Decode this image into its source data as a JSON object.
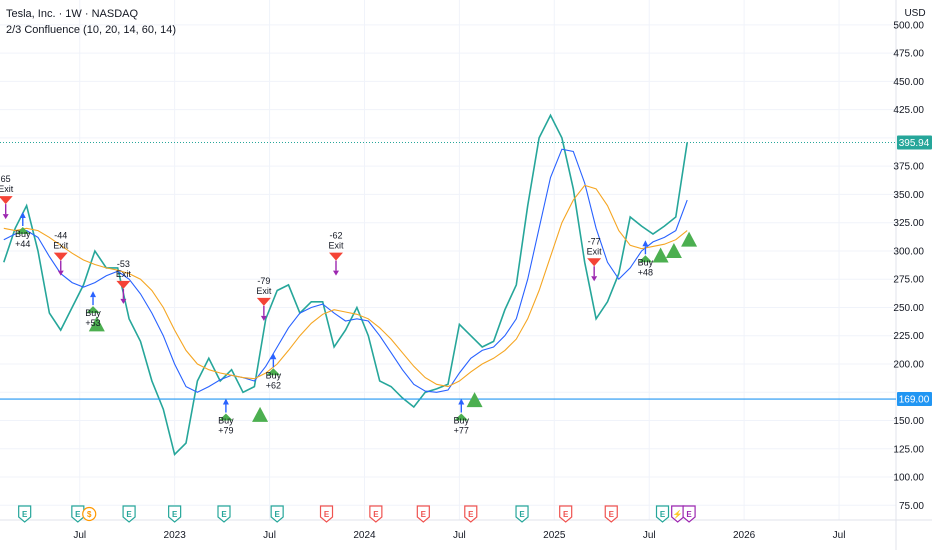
{
  "header": {
    "title": "Tesla, Inc. · 1W · NASDAQ",
    "indicator": "2/3 Confluence (10, 20, 14, 60, 14)",
    "currency": "USD"
  },
  "colors": {
    "up": "#26a69a",
    "down": "#ef5350",
    "grid": "#f0f3fa",
    "fast_ma": "#2962ff",
    "slow_ma": "#f5a623",
    "support": "#2196f3",
    "last": "#26a69a",
    "buy": "#4caf50",
    "exit": "#f44336",
    "marker": "#9c27b0"
  },
  "chart_data": {
    "type": "line",
    "title": "",
    "xlabel": "",
    "ylabel": "",
    "y_ticks": [
      75,
      100,
      125,
      150,
      175,
      200,
      225,
      250,
      275,
      300,
      325,
      350,
      375,
      400,
      425,
      450,
      475,
      500
    ],
    "y_tick_labels": [
      "75.00",
      "100.00",
      "125.00",
      "150.00",
      "175.00",
      "200.00",
      "225.00",
      "250.00",
      "275.00",
      "300.00",
      "325.00",
      "350.00",
      "375.00",
      "400.00",
      "425.00",
      "450.00",
      "475.00",
      "500.00"
    ],
    "ylim": [
      62,
      522
    ],
    "x_ticks": [
      {
        "label": "Jul",
        "t": 2022.5
      },
      {
        "label": "2023",
        "t": 2023.0
      },
      {
        "label": "Jul",
        "t": 2023.5
      },
      {
        "label": "2024",
        "t": 2024.0
      },
      {
        "label": "Jul",
        "t": 2024.5
      },
      {
        "label": "2025",
        "t": 2025.0
      },
      {
        "label": "Jul",
        "t": 2025.5
      },
      {
        "label": "2026",
        "t": 2026.0
      },
      {
        "label": "Jul",
        "t": 2026.5
      }
    ],
    "xlim": [
      2022.08,
      2026.8
    ],
    "series": [
      {
        "values": [
          [
            2022.1,
            290
          ],
          [
            2022.16,
            320
          ],
          [
            2022.22,
            340
          ],
          [
            2022.28,
            300
          ],
          [
            2022.34,
            245
          ],
          [
            2022.4,
            230
          ],
          [
            2022.46,
            250
          ],
          [
            2022.52,
            270
          ],
          [
            2022.58,
            300
          ],
          [
            2022.64,
            285
          ],
          [
            2022.7,
            285
          ],
          [
            2022.76,
            240
          ],
          [
            2022.82,
            220
          ],
          [
            2022.88,
            185
          ],
          [
            2022.94,
            160
          ],
          [
            2023.0,
            120
          ],
          [
            2023.06,
            130
          ],
          [
            2023.12,
            185
          ],
          [
            2023.18,
            205
          ],
          [
            2023.24,
            185
          ],
          [
            2023.3,
            195
          ],
          [
            2023.36,
            175
          ],
          [
            2023.42,
            180
          ],
          [
            2023.48,
            240
          ],
          [
            2023.54,
            265
          ],
          [
            2023.6,
            270
          ],
          [
            2023.66,
            245
          ],
          [
            2023.72,
            255
          ],
          [
            2023.78,
            255
          ],
          [
            2023.84,
            215
          ],
          [
            2023.9,
            230
          ],
          [
            2023.96,
            250
          ],
          [
            2024.02,
            225
          ],
          [
            2024.08,
            185
          ],
          [
            2024.14,
            180
          ],
          [
            2024.2,
            170
          ],
          [
            2024.26,
            162
          ],
          [
            2024.32,
            175
          ],
          [
            2024.38,
            178
          ],
          [
            2024.44,
            182
          ],
          [
            2024.5,
            235
          ],
          [
            2024.56,
            225
          ],
          [
            2024.62,
            215
          ],
          [
            2024.68,
            220
          ],
          [
            2024.74,
            248
          ],
          [
            2024.8,
            270
          ],
          [
            2024.86,
            340
          ],
          [
            2024.92,
            400
          ],
          [
            2024.98,
            420
          ],
          [
            2025.04,
            400
          ],
          [
            2025.1,
            355
          ],
          [
            2025.16,
            290
          ],
          [
            2025.22,
            240
          ],
          [
            2025.28,
            255
          ],
          [
            2025.34,
            280
          ],
          [
            2025.4,
            330
          ],
          [
            2025.46,
            322
          ],
          [
            2025.52,
            315
          ],
          [
            2025.58,
            322
          ],
          [
            2025.64,
            330
          ],
          [
            2025.7,
            396
          ]
        ]
      },
      {
        "values": [
          [
            2022.1,
            310
          ],
          [
            2022.16,
            315
          ],
          [
            2022.22,
            318
          ],
          [
            2022.28,
            312
          ],
          [
            2022.34,
            295
          ],
          [
            2022.4,
            280
          ],
          [
            2022.46,
            272
          ],
          [
            2022.52,
            268
          ],
          [
            2022.58,
            272
          ],
          [
            2022.64,
            278
          ],
          [
            2022.7,
            282
          ],
          [
            2022.76,
            275
          ],
          [
            2022.82,
            262
          ],
          [
            2022.88,
            245
          ],
          [
            2022.94,
            225
          ],
          [
            2023.0,
            200
          ],
          [
            2023.06,
            180
          ],
          [
            2023.12,
            175
          ],
          [
            2023.18,
            180
          ],
          [
            2023.24,
            186
          ],
          [
            2023.3,
            190
          ],
          [
            2023.36,
            188
          ],
          [
            2023.42,
            185
          ],
          [
            2023.48,
            198
          ],
          [
            2023.54,
            215
          ],
          [
            2023.6,
            232
          ],
          [
            2023.66,
            245
          ],
          [
            2023.72,
            250
          ],
          [
            2023.78,
            253
          ],
          [
            2023.84,
            245
          ],
          [
            2023.9,
            238
          ],
          [
            2023.96,
            240
          ],
          [
            2024.02,
            238
          ],
          [
            2024.08,
            225
          ],
          [
            2024.14,
            210
          ],
          [
            2024.2,
            195
          ],
          [
            2024.26,
            182
          ],
          [
            2024.32,
            176
          ],
          [
            2024.38,
            175
          ],
          [
            2024.44,
            177
          ],
          [
            2024.5,
            192
          ],
          [
            2024.56,
            205
          ],
          [
            2024.62,
            212
          ],
          [
            2024.68,
            215
          ],
          [
            2024.74,
            225
          ],
          [
            2024.8,
            240
          ],
          [
            2024.86,
            275
          ],
          [
            2024.92,
            320
          ],
          [
            2024.98,
            365
          ],
          [
            2025.04,
            390
          ],
          [
            2025.1,
            388
          ],
          [
            2025.16,
            360
          ],
          [
            2025.22,
            320
          ],
          [
            2025.28,
            290
          ],
          [
            2025.34,
            275
          ],
          [
            2025.4,
            285
          ],
          [
            2025.46,
            300
          ],
          [
            2025.52,
            308
          ],
          [
            2025.58,
            312
          ],
          [
            2025.64,
            318
          ],
          [
            2025.7,
            345
          ]
        ]
      },
      {
        "values": [
          [
            2022.1,
            320
          ],
          [
            2022.16,
            318
          ],
          [
            2022.22,
            320
          ],
          [
            2022.28,
            318
          ],
          [
            2022.34,
            312
          ],
          [
            2022.4,
            305
          ],
          [
            2022.46,
            298
          ],
          [
            2022.52,
            292
          ],
          [
            2022.58,
            288
          ],
          [
            2022.64,
            285
          ],
          [
            2022.7,
            283
          ],
          [
            2022.76,
            280
          ],
          [
            2022.82,
            275
          ],
          [
            2022.88,
            265
          ],
          [
            2022.94,
            250
          ],
          [
            2023.0,
            230
          ],
          [
            2023.06,
            212
          ],
          [
            2023.12,
            200
          ],
          [
            2023.18,
            195
          ],
          [
            2023.24,
            192
          ],
          [
            2023.3,
            190
          ],
          [
            2023.36,
            188
          ],
          [
            2023.42,
            187
          ],
          [
            2023.48,
            192
          ],
          [
            2023.54,
            200
          ],
          [
            2023.6,
            212
          ],
          [
            2023.66,
            225
          ],
          [
            2023.72,
            236
          ],
          [
            2023.78,
            244
          ],
          [
            2023.84,
            248
          ],
          [
            2023.9,
            246
          ],
          [
            2023.96,
            244
          ],
          [
            2024.02,
            240
          ],
          [
            2024.08,
            232
          ],
          [
            2024.14,
            222
          ],
          [
            2024.2,
            210
          ],
          [
            2024.26,
            198
          ],
          [
            2024.32,
            188
          ],
          [
            2024.38,
            182
          ],
          [
            2024.44,
            180
          ],
          [
            2024.5,
            185
          ],
          [
            2024.56,
            193
          ],
          [
            2024.62,
            200
          ],
          [
            2024.68,
            205
          ],
          [
            2024.74,
            212
          ],
          [
            2024.8,
            222
          ],
          [
            2024.86,
            240
          ],
          [
            2024.92,
            265
          ],
          [
            2024.98,
            295
          ],
          [
            2025.04,
            325
          ],
          [
            2025.1,
            345
          ],
          [
            2025.16,
            358
          ],
          [
            2025.22,
            355
          ],
          [
            2025.28,
            340
          ],
          [
            2025.34,
            318
          ],
          [
            2025.4,
            305
          ],
          [
            2025.46,
            302
          ],
          [
            2025.52,
            304
          ],
          [
            2025.58,
            306
          ],
          [
            2025.64,
            310
          ],
          [
            2025.7,
            318
          ]
        ]
      }
    ],
    "last_price": 395.94,
    "last_price_label": "395.94",
    "support_level": 169,
    "support_label": "169.00",
    "signals": [
      {
        "t": 2022.11,
        "price": 345,
        "kind": "exit",
        "label": "Exit",
        "pnl": "65"
      },
      {
        "t": 2022.2,
        "price": 315,
        "kind": "buy",
        "label": "Buy",
        "pnl": "+44"
      },
      {
        "t": 2022.4,
        "price": 295,
        "kind": "exit",
        "label": "Exit",
        "pnl": "-44"
      },
      {
        "t": 2022.57,
        "price": 245,
        "kind": "buy",
        "label": "Buy",
        "pnl": "+53"
      },
      {
        "t": 2022.73,
        "price": 270,
        "kind": "exit",
        "label": "Exit",
        "pnl": "-53"
      },
      {
        "t": 2023.27,
        "price": 150,
        "kind": "buy",
        "label": "Buy",
        "pnl": "+79"
      },
      {
        "t": 2023.47,
        "price": 255,
        "kind": "exit",
        "label": "Exit",
        "pnl": "-79"
      },
      {
        "t": 2023.52,
        "price": 190,
        "kind": "buy",
        "label": "Buy",
        "pnl": "+62"
      },
      {
        "t": 2023.85,
        "price": 295,
        "kind": "exit",
        "label": "Exit",
        "pnl": "-62"
      },
      {
        "t": 2024.51,
        "price": 150,
        "kind": "buy",
        "label": "Buy",
        "pnl": "+77"
      },
      {
        "t": 2025.21,
        "price": 290,
        "kind": "exit",
        "label": "Exit",
        "pnl": "-77"
      },
      {
        "t": 2025.48,
        "price": 290,
        "kind": "buy",
        "label": "Buy",
        "pnl": "+48"
      }
    ],
    "triangles": [
      [
        2022.59,
        235
      ],
      [
        2023.45,
        155
      ],
      [
        2024.58,
        168
      ],
      [
        2025.56,
        296
      ],
      [
        2025.63,
        300
      ],
      [
        2025.71,
        310
      ]
    ],
    "events": [
      {
        "t": 2022.21,
        "icon": "E",
        "kind": "earnings"
      },
      {
        "t": 2022.49,
        "icon": "E",
        "kind": "earnings"
      },
      {
        "t": 2022.55,
        "icon": "$",
        "kind": "dividend"
      },
      {
        "t": 2022.76,
        "icon": "E",
        "kind": "earnings"
      },
      {
        "t": 2023.0,
        "icon": "E",
        "kind": "earnings"
      },
      {
        "t": 2023.26,
        "icon": "E",
        "kind": "earnings"
      },
      {
        "t": 2023.54,
        "icon": "E",
        "kind": "earnings"
      },
      {
        "t": 2023.8,
        "icon": "E",
        "kind": "earnings-miss"
      },
      {
        "t": 2024.06,
        "icon": "E",
        "kind": "earnings-miss"
      },
      {
        "t": 2024.31,
        "icon": "E",
        "kind": "earnings-miss"
      },
      {
        "t": 2024.56,
        "icon": "E",
        "kind": "earnings-miss"
      },
      {
        "t": 2024.83,
        "icon": "E",
        "kind": "earnings"
      },
      {
        "t": 2025.06,
        "icon": "E",
        "kind": "earnings-miss"
      },
      {
        "t": 2025.3,
        "icon": "E",
        "kind": "earnings-miss"
      },
      {
        "t": 2025.57,
        "icon": "E",
        "kind": "earnings"
      },
      {
        "t": 2025.65,
        "icon": "⚡",
        "kind": "split"
      },
      {
        "t": 2025.71,
        "icon": "E",
        "kind": "upcoming"
      }
    ]
  }
}
